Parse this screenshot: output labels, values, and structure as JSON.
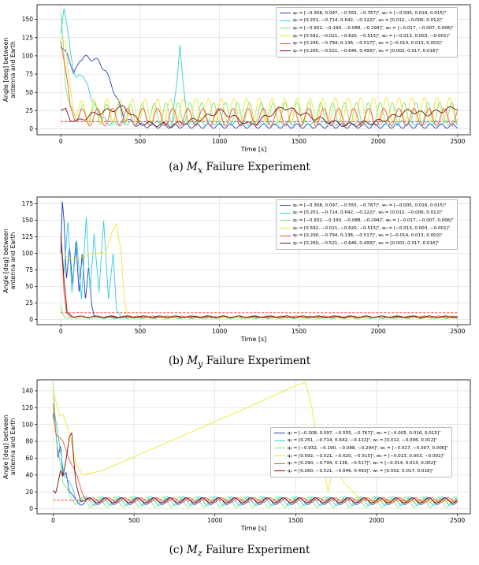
{
  "chart_data": [
    {
      "type": "line",
      "title": "",
      "caption_prefix": "(a)",
      "caption_symbol": "M",
      "caption_sub": "x",
      "caption_text": "Failure Experiment",
      "xlabel": "Time [s]",
      "ylabel_lines": [
        "Angle [deg] between",
        "antenna and Earth"
      ],
      "xlim": [
        -150,
        2580
      ],
      "ylim": [
        -8,
        170
      ],
      "xticks": [
        0,
        500,
        1000,
        1500,
        2000,
        2500
      ],
      "yticks": [
        0,
        25,
        50,
        75,
        100,
        125,
        150
      ],
      "grid": true,
      "legend_position": "top-right",
      "threshold": {
        "y": 10,
        "color": "#ff0000",
        "style": "dashed"
      },
      "series": [
        {
          "legend": "q₀ = [−0.308, 0.097, −0.555, −0.767]ᵀ, w₀ = [−0.005, 0.016, 0.015]ᵀ",
          "color": "#1f3fbf",
          "x": [
            0,
            40,
            80,
            120,
            160,
            200,
            240,
            280,
            320,
            360,
            400,
            450,
            500,
            600,
            800,
            1000,
            1500,
            2000,
            2500
          ],
          "y": [
            112,
            104,
            75,
            95,
            98,
            96,
            92,
            80,
            60,
            38,
            15,
            8,
            5,
            4,
            4,
            4,
            4,
            4,
            4
          ],
          "osc_amp": 3,
          "osc_period": 70
        },
        {
          "legend": "q₀ = [0.251, −0.714, 0.642, −0.122]ᵀ, w₀ = [0.012, −0.006, 0.012]ᵀ",
          "color": "#33ccdd",
          "x": [
            0,
            20,
            40,
            60,
            80,
            100,
            140,
            180,
            220,
            260,
            300,
            500,
            700,
            730,
            750,
            770,
            800,
            1000,
            2000,
            2500
          ],
          "y": [
            130,
            165,
            140,
            105,
            80,
            70,
            75,
            50,
            30,
            15,
            8,
            8,
            8,
            60,
            118,
            60,
            8,
            8,
            8,
            8
          ],
          "osc_amp": 3,
          "osc_period": 55
        },
        {
          "legend": "q₀ = [−0.932, −0.190, −0.088, −0.294]ᵀ, w₀ = [−0.017, −0.007, 0.006]ᵀ",
          "color": "#77e877",
          "x": [
            0,
            15,
            30,
            60,
            100,
            200,
            400,
            800,
            1200,
            1600,
            2000,
            2500
          ],
          "y": [
            160,
            120,
            60,
            25,
            20,
            20,
            20,
            22,
            22,
            22,
            22,
            22
          ],
          "osc_amp": 14,
          "osc_period": 75
        },
        {
          "legend": "q₀ = [0.592, −0.021, −0.620, −0.515]ᵀ, w₀ = [−0.013, 0.003, −0.001]ᵀ",
          "color": "#f2e433",
          "x": [
            0,
            30,
            50,
            80,
            120,
            200,
            400,
            800,
            1200,
            1600,
            2000,
            2500
          ],
          "y": [
            125,
            120,
            60,
            30,
            25,
            25,
            25,
            25,
            26,
            26,
            27,
            27
          ],
          "osc_amp": 16,
          "osc_period": 80
        },
        {
          "legend": "q₀ = [0.290, −0.794, 0.136, −0.517]ᵀ, w₀ = [−0.014, 0.013, 0.002]ᵀ",
          "color": "#ff5533",
          "x": [
            0,
            30,
            60,
            90,
            150,
            300,
            800,
            1500,
            2000,
            2500
          ],
          "y": [
            120,
            80,
            30,
            18,
            16,
            16,
            16,
            16,
            16,
            16
          ],
          "osc_amp": 12,
          "osc_period": 95
        },
        {
          "legend": "q₀ = [0.260, −0.521, −0.646, 0.493]ᵀ, w₀ = [0.002, 0.017, 0.016]ᵀ",
          "color": "#7a0d0d",
          "x": [
            0,
            30,
            60,
            100,
            200,
            300,
            400,
            500,
            700,
            900,
            1000,
            1200,
            1400,
            1600,
            1800,
            2000,
            2200,
            2300,
            2500
          ],
          "y": [
            25,
            28,
            12,
            10,
            20,
            25,
            30,
            8,
            5,
            15,
            25,
            5,
            30,
            15,
            5,
            10,
            25,
            20,
            30
          ],
          "osc_amp": 3,
          "osc_period": 90
        }
      ]
    },
    {
      "type": "line",
      "title": "",
      "caption_prefix": "(b)",
      "caption_symbol": "M",
      "caption_sub": "y",
      "caption_text": "Failure Experiment",
      "xlabel": "Time [s]",
      "ylabel_lines": [
        "Angle [deg] between",
        "antenna and Earth"
      ],
      "xlim": [
        -150,
        2580
      ],
      "ylim": [
        -8,
        185
      ],
      "xticks": [
        0,
        500,
        1000,
        1500,
        2000,
        2500
      ],
      "yticks": [
        0,
        25,
        50,
        75,
        100,
        125,
        150,
        175
      ],
      "grid": true,
      "legend_position": "top-right",
      "threshold": {
        "y": 10,
        "color": "#ff0000",
        "style": "dashed"
      },
      "series": [
        {
          "legend": "q₀ = [−0.308, 0.097, −0.555, −0.767]ᵀ, w₀ = [−0.005, 0.016, 0.015]ᵀ",
          "color": "#1f3fbf",
          "x": [
            0,
            10,
            20,
            35,
            55,
            75,
            95,
            115,
            135,
            155,
            175,
            195,
            210,
            230,
            300,
            1000,
            2500
          ],
          "y": [
            100,
            178,
            150,
            60,
            110,
            50,
            120,
            40,
            100,
            30,
            80,
            20,
            5,
            3,
            3,
            3,
            3
          ],
          "osc_amp": 0.8,
          "osc_period": 60
        },
        {
          "legend": "q₀ = [0.251, −0.714, 0.642, −0.122]ᵀ, w₀ = [0.012, −0.006, 0.012]ᵀ",
          "color": "#33ccdd",
          "x": [
            0,
            20,
            45,
            70,
            100,
            130,
            160,
            185,
            210,
            240,
            270,
            300,
            330,
            350,
            380,
            1000,
            2500
          ],
          "y": [
            130,
            70,
            150,
            40,
            120,
            30,
            155,
            40,
            130,
            40,
            150,
            30,
            100,
            15,
            3,
            3,
            3
          ],
          "osc_amp": 0.8,
          "osc_period": 60
        },
        {
          "legend": "q₀ = [−0.932, −0.190, −0.088, −0.294]ᵀ, w₀ = [−0.017, −0.007, 0.006]ᵀ",
          "color": "#77e877",
          "x": [
            0,
            10,
            25,
            45,
            100,
            1000,
            2500
          ],
          "y": [
            20,
            10,
            3,
            2,
            2,
            2,
            2
          ],
          "osc_amp": 1,
          "osc_period": 80
        },
        {
          "legend": "q₀ = [0.592, −0.021, −0.620, −0.515]ᵀ, w₀ = [−0.013, 0.003, −0.001]ᵀ",
          "color": "#f2e433",
          "x": [
            0,
            80,
            200,
            280,
            320,
            350,
            380,
            400,
            420,
            500,
            1000,
            2500
          ],
          "y": [
            100,
            90,
            100,
            100,
            130,
            145,
            100,
            30,
            4,
            3,
            3,
            3
          ],
          "osc_amp": 1,
          "osc_period": 70
        },
        {
          "legend": "q₀ = [0.290, −0.794, 0.136, −0.517]ᵀ, w₀ = [−0.014, 0.013, 0.002]ᵀ",
          "color": "#ff5533",
          "x": [
            0,
            10,
            20,
            35,
            60,
            1000,
            2500
          ],
          "y": [
            130,
            90,
            40,
            10,
            4,
            4,
            4
          ],
          "osc_amp": 1,
          "osc_period": 90
        },
        {
          "legend": "q₀ = [0.260, −0.521, −0.646, 0.493]ᵀ, w₀ = [0.002, 0.017, 0.016]ᵀ",
          "color": "#7a0d0d",
          "x": [
            0,
            20,
            40,
            80,
            200,
            1000,
            2500
          ],
          "y": [
            125,
            60,
            10,
            4,
            4,
            4,
            4
          ],
          "osc_amp": 1.2,
          "osc_period": 100
        }
      ]
    },
    {
      "type": "line",
      "title": "",
      "caption_prefix": "(c)",
      "caption_symbol": "M",
      "caption_sub": "z",
      "caption_text": "Failure Experiment",
      "xlabel": "Time [s]",
      "ylabel_lines": [
        "Angle [deg] between",
        "antenna and Earth"
      ],
      "xlim": [
        -100,
        2580
      ],
      "ylim": [
        -6,
        153
      ],
      "xticks": [
        0,
        500,
        1000,
        1500,
        2000,
        2500
      ],
      "yticks": [
        0,
        20,
        40,
        60,
        80,
        100,
        120,
        140
      ],
      "grid": true,
      "legend_position": "center-right",
      "threshold": {
        "y": 10,
        "color": "#ff0000",
        "style": "dashed"
      },
      "series": [
        {
          "legend": "q₀ = [−0.308, 0.097, −0.555, −0.767]ᵀ, w₀ = [−0.005, 0.016, 0.015]ᵀ",
          "color": "#1f3fbf",
          "x": [
            0,
            15,
            30,
            45,
            60,
            80,
            100,
            130,
            160,
            200,
            400,
            1000,
            2000,
            2500
          ],
          "y": [
            113,
            95,
            60,
            75,
            40,
            45,
            20,
            10,
            8,
            9,
            9,
            9,
            9,
            9
          ],
          "osc_amp": 4,
          "osc_period": 100
        },
        {
          "legend": "q₀ = [0.251, −0.714, 0.642, −0.122]ᵀ, w₀ = [0.012, −0.006, 0.012]ᵀ",
          "color": "#33ccdd",
          "x": [
            0,
            20,
            40,
            70,
            110,
            150,
            200,
            400,
            1000,
            2000,
            2500
          ],
          "y": [
            125,
            100,
            75,
            40,
            25,
            12,
            9,
            9,
            9,
            9,
            9
          ],
          "osc_amp": 5,
          "osc_period": 100
        },
        {
          "legend": "q₀ = [−0.932, −0.190, −0.088, −0.294]ᵀ, w₀ = [−0.017, −0.007, 0.006]ᵀ",
          "color": "#77e877",
          "x": [
            0,
            20,
            40,
            60,
            100,
            160,
            200,
            400,
            1000,
            2000,
            2500
          ],
          "y": [
            150,
            80,
            60,
            30,
            15,
            8,
            8,
            8,
            8,
            8,
            8
          ],
          "osc_amp": 6,
          "osc_period": 100
        },
        {
          "legend": "q₀ = [0.592, −0.021, −0.620, −0.515]ᵀ, w₀ = [−0.013, 0.003, −0.001]ᵀ",
          "color": "#f2e433",
          "x": [
            0,
            20,
            40,
            60,
            100,
            140,
            180,
            300,
            600,
            900,
            1200,
            1500,
            1560,
            1600,
            1620,
            1660,
            1700,
            1720,
            1760,
            1800,
            1900,
            2000,
            2500
          ],
          "y": [
            140,
            125,
            110,
            112,
            90,
            55,
            40,
            45,
            70,
            95,
            120,
            146,
            150,
            120,
            95,
            60,
            20,
            38,
            45,
            30,
            12,
            9,
            9
          ],
          "osc_amp": 0,
          "osc_period": 100
        },
        {
          "legend": "q₀ = [0.290, −0.794, 0.136, −0.517]ᵀ, w₀ = [−0.014, 0.013, 0.002]ᵀ",
          "color": "#ff5533",
          "x": [
            0,
            15,
            30,
            60,
            100,
            140,
            180,
            220,
            400,
            1000,
            2000,
            2500
          ],
          "y": [
            125,
            90,
            85,
            80,
            60,
            40,
            20,
            10,
            10,
            10,
            10,
            10
          ],
          "osc_amp": 3,
          "osc_period": 100
        },
        {
          "legend": "q₀ = [0.260, −0.521, −0.646, 0.493]ᵀ, w₀ = [0.002, 0.017, 0.016]ᵀ",
          "color": "#7a0d0d",
          "x": [
            0,
            15,
            30,
            45,
            60,
            80,
            100,
            115,
            125,
            140,
            170,
            200,
            400,
            1000,
            2000,
            2500
          ],
          "y": [
            22,
            18,
            30,
            45,
            40,
            60,
            85,
            88,
            60,
            30,
            12,
            10,
            10,
            10,
            10,
            10
          ],
          "osc_amp": 3,
          "osc_period": 100
        }
      ]
    }
  ]
}
